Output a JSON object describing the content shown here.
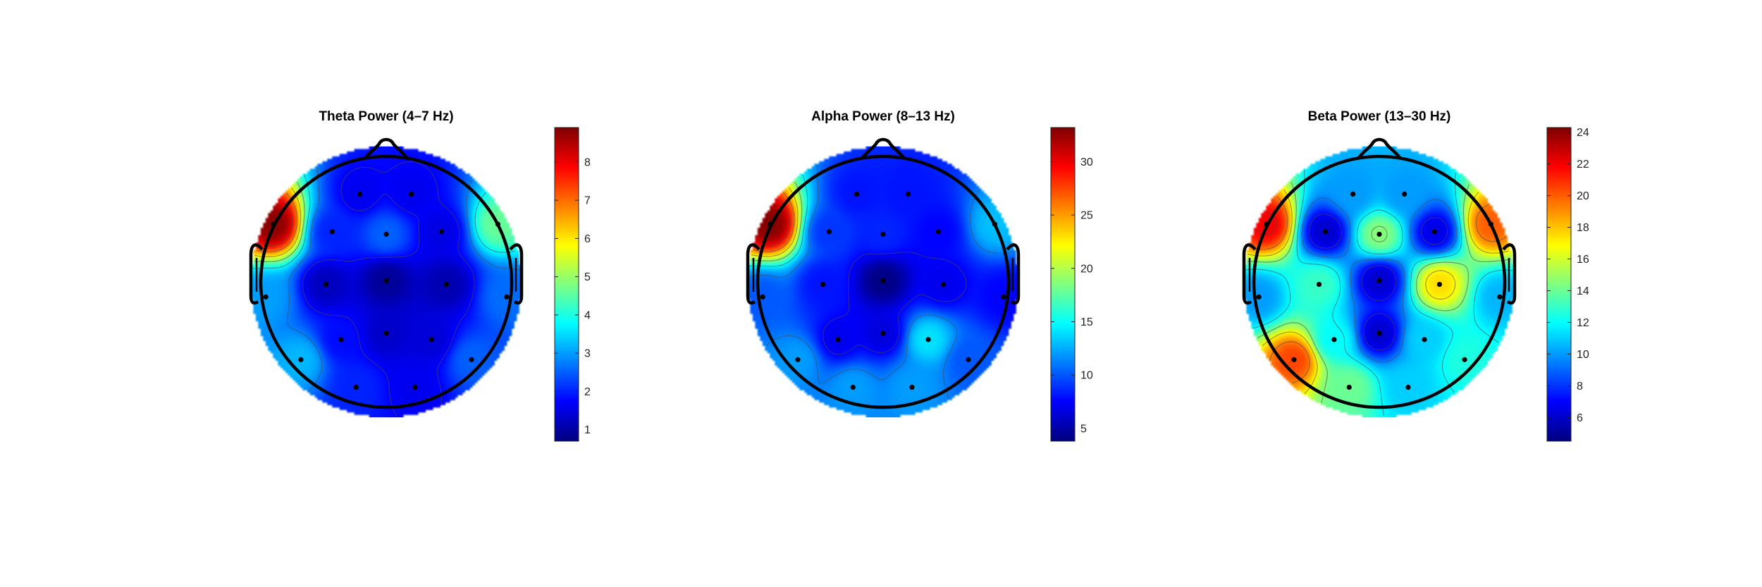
{
  "chart_data": [
    {
      "type": "heatmap",
      "title": "Theta Power (4–7 Hz)",
      "colorbar": {
        "min": 0.7,
        "max": 8.9,
        "ticks": [
          1,
          2,
          3,
          4,
          5,
          6,
          7,
          8
        ]
      },
      "colormap": "jet",
      "electrodes": [
        {
          "x": -0.21,
          "y": 0.7,
          "v": 1.6
        },
        {
          "x": 0.2,
          "y": 0.7,
          "v": 1.6
        },
        {
          "x": -0.9,
          "y": 0.46,
          "v": 8.8
        },
        {
          "x": -0.43,
          "y": 0.4,
          "v": 2.0
        },
        {
          "x": 0.0,
          "y": 0.38,
          "v": 2.5
        },
        {
          "x": 0.44,
          "y": 0.4,
          "v": 1.5
        },
        {
          "x": 0.89,
          "y": 0.46,
          "v": 4.6
        },
        {
          "x": -0.96,
          "y": -0.12,
          "v": 3.0
        },
        {
          "x": -0.48,
          "y": -0.02,
          "v": 1.2
        },
        {
          "x": 0.0,
          "y": 0.01,
          "v": 0.9
        },
        {
          "x": 0.48,
          "y": -0.02,
          "v": 1.1
        },
        {
          "x": 0.96,
          "y": -0.12,
          "v": 2.6
        },
        {
          "x": -0.68,
          "y": -0.62,
          "v": 3.2
        },
        {
          "x": -0.36,
          "y": -0.46,
          "v": 1.8
        },
        {
          "x": 0.0,
          "y": -0.41,
          "v": 1.3
        },
        {
          "x": 0.36,
          "y": -0.46,
          "v": 1.4
        },
        {
          "x": 0.68,
          "y": -0.62,
          "v": 2.5
        },
        {
          "x": -0.24,
          "y": -0.84,
          "v": 2.0
        },
        {
          "x": 0.23,
          "y": -0.84,
          "v": 1.6
        }
      ]
    },
    {
      "type": "heatmap",
      "title": "Alpha Power (8–13 Hz)",
      "colorbar": {
        "min": 3.8,
        "max": 33.2,
        "ticks": [
          5,
          10,
          15,
          20,
          25,
          30
        ]
      },
      "colormap": "jet",
      "electrodes": [
        {
          "x": -0.21,
          "y": 0.7,
          "v": 8.0
        },
        {
          "x": 0.2,
          "y": 0.7,
          "v": 8.0
        },
        {
          "x": -0.9,
          "y": 0.46,
          "v": 33.0
        },
        {
          "x": -0.43,
          "y": 0.4,
          "v": 9.0
        },
        {
          "x": 0.0,
          "y": 0.38,
          "v": 8.5
        },
        {
          "x": 0.44,
          "y": 0.4,
          "v": 7.5
        },
        {
          "x": 0.89,
          "y": 0.46,
          "v": 13.0
        },
        {
          "x": -0.96,
          "y": -0.12,
          "v": 10.0
        },
        {
          "x": -0.48,
          "y": -0.02,
          "v": 8.0
        },
        {
          "x": 0.0,
          "y": 0.01,
          "v": 4.0
        },
        {
          "x": 0.48,
          "y": -0.02,
          "v": 7.0
        },
        {
          "x": 0.96,
          "y": -0.12,
          "v": 7.5
        },
        {
          "x": -0.68,
          "y": -0.62,
          "v": 12.0
        },
        {
          "x": -0.36,
          "y": -0.46,
          "v": 7.0
        },
        {
          "x": 0.0,
          "y": -0.41,
          "v": 6.5
        },
        {
          "x": 0.36,
          "y": -0.46,
          "v": 14.0
        },
        {
          "x": 0.68,
          "y": -0.62,
          "v": 10.0
        },
        {
          "x": -0.24,
          "y": -0.84,
          "v": 12.0
        },
        {
          "x": 0.23,
          "y": -0.84,
          "v": 12.0
        }
      ]
    },
    {
      "type": "heatmap",
      "title": "Beta Power (13–30 Hz)",
      "colorbar": {
        "min": 4.5,
        "max": 24.3,
        "ticks": [
          6,
          8,
          10,
          12,
          14,
          16,
          18,
          20,
          22,
          24
        ]
      },
      "colormap": "jet",
      "electrodes": [
        {
          "x": -0.21,
          "y": 0.7,
          "v": 10.0
        },
        {
          "x": 0.2,
          "y": 0.7,
          "v": 10.0
        },
        {
          "x": -0.9,
          "y": 0.46,
          "v": 22.0
        },
        {
          "x": -0.43,
          "y": 0.4,
          "v": 6.0
        },
        {
          "x": 0.0,
          "y": 0.38,
          "v": 14.5
        },
        {
          "x": 0.44,
          "y": 0.4,
          "v": 6.5
        },
        {
          "x": 0.89,
          "y": 0.46,
          "v": 20.0
        },
        {
          "x": -0.96,
          "y": -0.12,
          "v": 10.0
        },
        {
          "x": -0.48,
          "y": -0.02,
          "v": 13.0
        },
        {
          "x": 0.0,
          "y": 0.01,
          "v": 6.0
        },
        {
          "x": 0.48,
          "y": -0.02,
          "v": 17.5
        },
        {
          "x": 0.96,
          "y": -0.12,
          "v": 10.5
        },
        {
          "x": -0.68,
          "y": -0.62,
          "v": 20.5
        },
        {
          "x": -0.36,
          "y": -0.46,
          "v": 12.0
        },
        {
          "x": 0.0,
          "y": -0.41,
          "v": 6.0
        },
        {
          "x": 0.36,
          "y": -0.46,
          "v": 11.0
        },
        {
          "x": 0.68,
          "y": -0.62,
          "v": 12.5
        },
        {
          "x": -0.24,
          "y": -0.84,
          "v": 14.0
        },
        {
          "x": 0.23,
          "y": -0.84,
          "v": 11.0
        }
      ]
    }
  ]
}
